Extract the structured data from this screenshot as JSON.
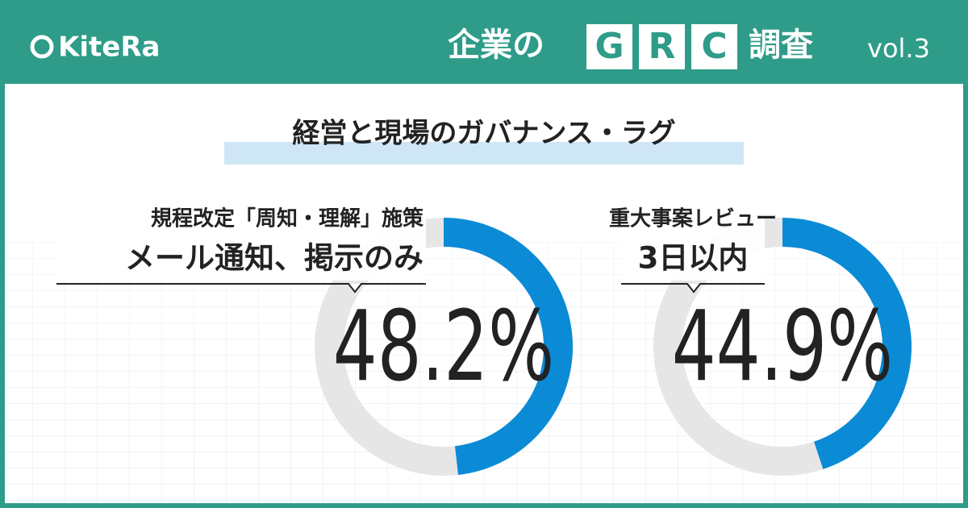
{
  "header": {
    "brand": "KiteRa",
    "title_pre": "企業の",
    "letters": [
      "G",
      "R",
      "C"
    ],
    "title_post": "調査",
    "vol": "vol.3"
  },
  "title": "経営と現場のガバナンス・ラグ",
  "chart_data": [
    {
      "type": "donut",
      "label_lines": [
        "規程改定「周知・理解」施策",
        "メール通知、掲示のみ"
      ],
      "values": [
        48.2
      ],
      "value_labels": [
        "48.2%"
      ],
      "color": "#0b8bd6",
      "track_color": "#e6e6e6"
    },
    {
      "type": "donut",
      "label_lines": [
        "重大事案レビュー",
        "3日以内"
      ],
      "values": [
        44.9
      ],
      "value_labels": [
        "44.9%"
      ],
      "color": "#0b8bd6",
      "track_color": "#e6e6e6"
    }
  ]
}
